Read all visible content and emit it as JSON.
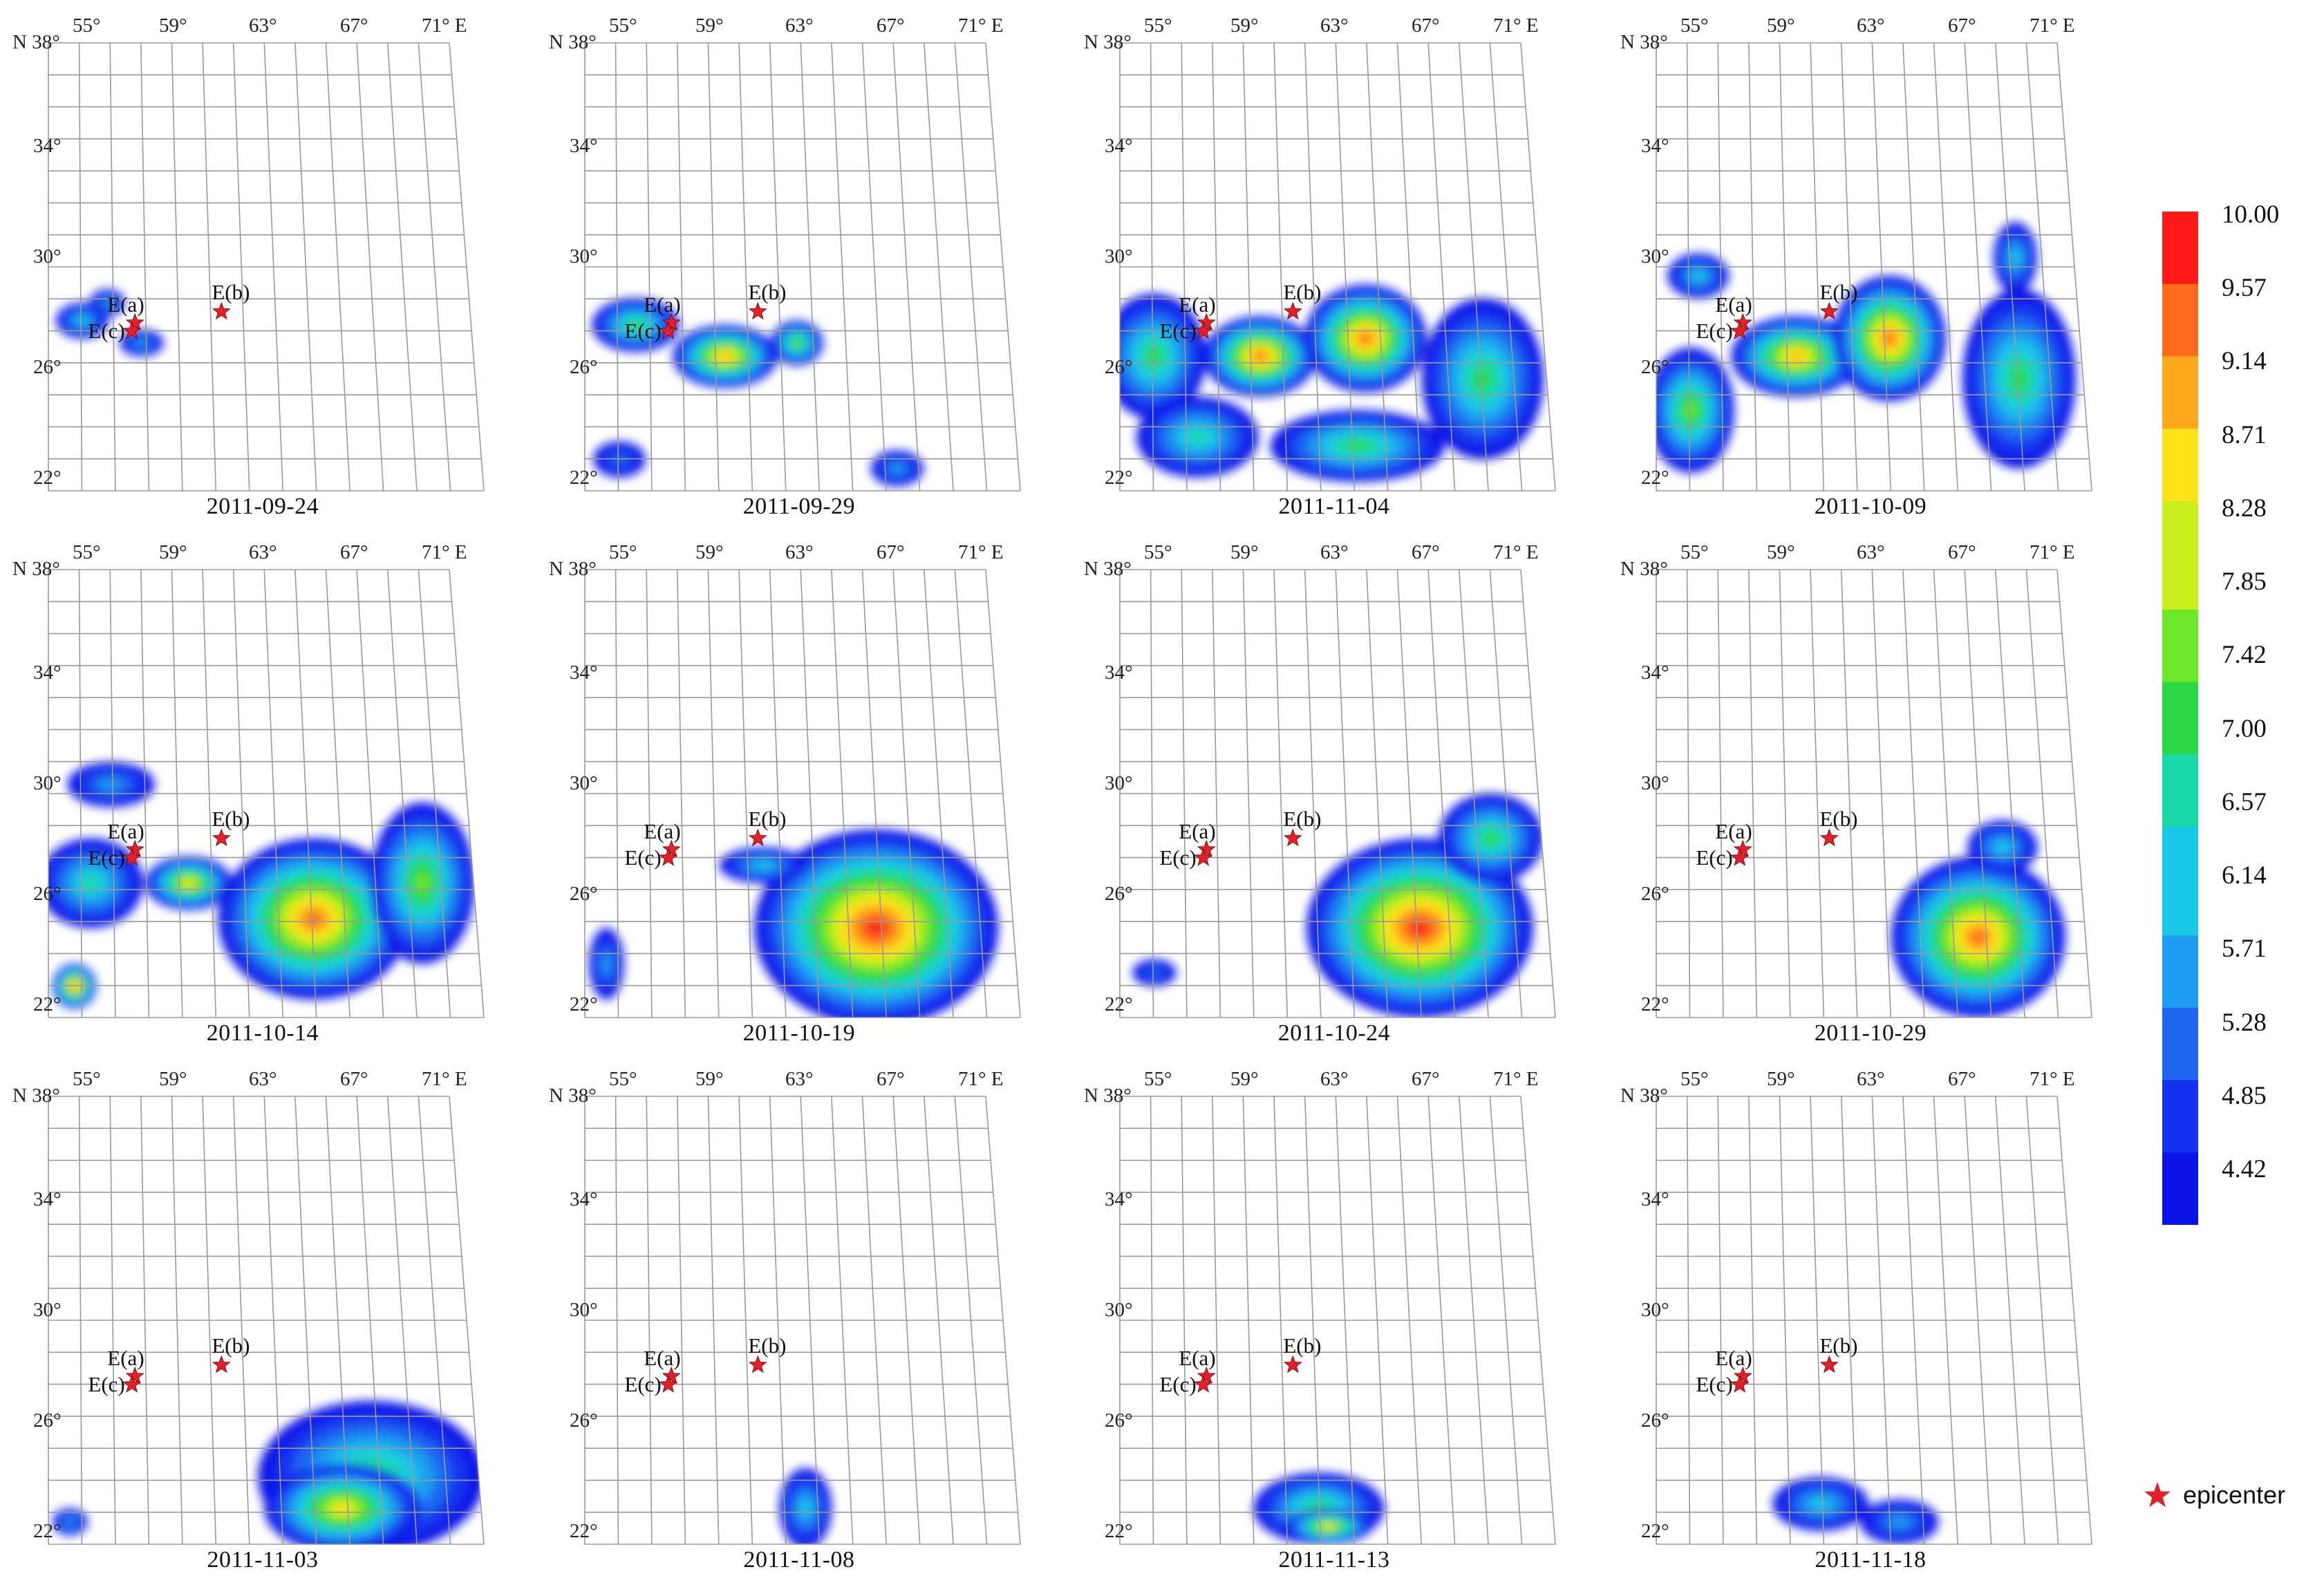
{
  "axes": {
    "lon_ticks": [
      "55°",
      "59°",
      "63°",
      "67°",
      "71°"
    ],
    "lon_suffix": "E",
    "lat_ticks": [
      "N 38°",
      "34°",
      "30°",
      "26°",
      "22°"
    ],
    "lon_range": [
      55,
      71
    ],
    "lat_range": [
      22,
      38
    ]
  },
  "epicenters": [
    {
      "label": "E(a)",
      "lon": 59.0,
      "lat": 28.0
    },
    {
      "label": "E(c)",
      "lon": 58.8,
      "lat": 27.7
    },
    {
      "label": "E(b)",
      "lon": 64.3,
      "lat": 28.4
    }
  ],
  "panels": [
    {
      "date": "2011-09-24"
    },
    {
      "date": "2011-09-29"
    },
    {
      "date": "2011-11-04"
    },
    {
      "date": "2011-10-09"
    },
    {
      "date": "2011-10-14"
    },
    {
      "date": "2011-10-19"
    },
    {
      "date": "2011-10-24"
    },
    {
      "date": "2011-10-29"
    },
    {
      "date": "2011-11-03"
    },
    {
      "date": "2011-11-08"
    },
    {
      "date": "2011-11-13"
    },
    {
      "date": "2011-11-18"
    }
  ],
  "colorbar": {
    "ticks": [
      "10.00",
      "9.57",
      "9.14",
      "8.71",
      "8.28",
      "7.85",
      "7.42",
      "7.00",
      "6.57",
      "6.14",
      "5.71",
      "5.28",
      "4.85",
      "4.42"
    ],
    "range": [
      4.0,
      10.0
    ],
    "colors": [
      "#ff1a1a",
      "#ff6a1e",
      "#ffa81e",
      "#ffe21a",
      "#c8ee1e",
      "#6ee62a",
      "#2ad84a",
      "#1ad9a8",
      "#1ac8e6",
      "#1e9cf0",
      "#1e66f0",
      "#1632f0",
      "#0a14e6"
    ]
  },
  "legend": {
    "label": "epicenter",
    "color": "#e0202a"
  }
}
